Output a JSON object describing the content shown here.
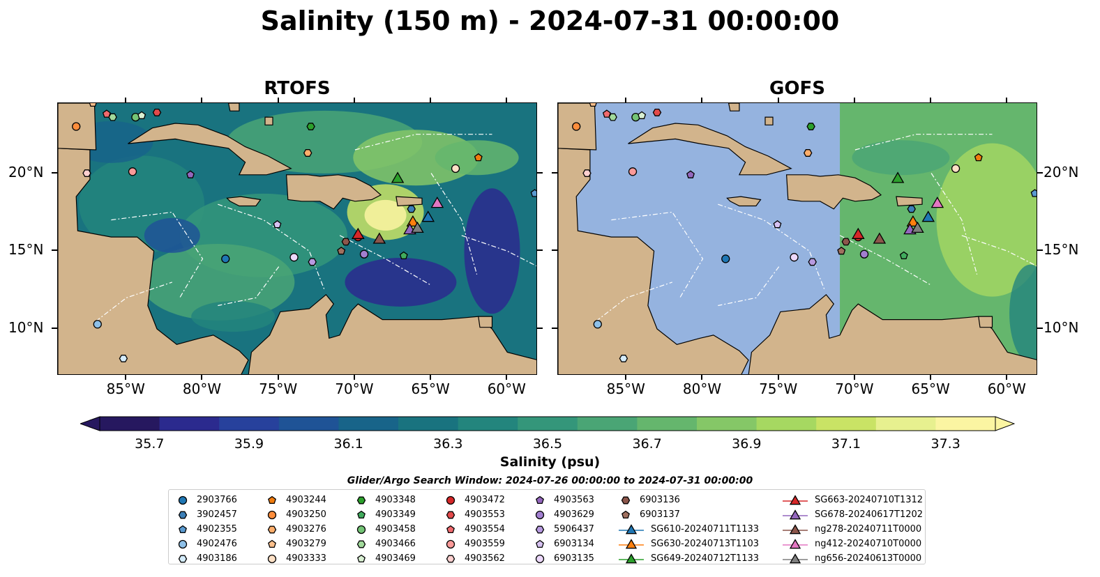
{
  "title": "Salinity (150 m) - 2024-07-31 00:00:00",
  "panels": [
    {
      "name": "RTOFS"
    },
    {
      "name": "GOFS"
    }
  ],
  "lon_ticks": [
    "85°W",
    "80°W",
    "75°W",
    "70°W",
    "65°W",
    "60°W"
  ],
  "lat_ticks": [
    "20°N",
    "15°N",
    "10°N"
  ],
  "colorbar": {
    "label": "Salinity (psu)",
    "ticks": [
      "35.7",
      "35.9",
      "36.1",
      "36.3",
      "36.5",
      "36.7",
      "36.9",
      "37.1",
      "37.3"
    ],
    "min": 35.7,
    "max": 37.3,
    "extend": "both",
    "colors": [
      "#26185f",
      "#2b2a8e",
      "#27419c",
      "#1f5396",
      "#186489",
      "#19737f",
      "#23857d",
      "#34967a",
      "#4aa575",
      "#65b66d",
      "#85c767",
      "#a6d861",
      "#c9e365",
      "#e7f08f",
      "#fbf5a2"
    ]
  },
  "search_window": "Glider/Argo Search Window: 2024-07-26 00:00:00 to 2024-07-31 00:00:00",
  "legend": [
    {
      "label": "2903766",
      "marker": "circle",
      "color": "#1f77b4"
    },
    {
      "label": "3902457",
      "marker": "hexagon",
      "color": "#3c7fb7"
    },
    {
      "label": "4902355",
      "marker": "pentagon",
      "color": "#5a9ad0"
    },
    {
      "label": "4902476",
      "marker": "circle",
      "color": "#8ec0e8"
    },
    {
      "label": "4903186",
      "marker": "hexagon",
      "color": "#d4ecfb"
    },
    {
      "label": "4903244",
      "marker": "pentagon",
      "color": "#f07c0e"
    },
    {
      "label": "4903250",
      "marker": "circle",
      "color": "#fd8d3c"
    },
    {
      "label": "4903276",
      "marker": "hexagon",
      "color": "#fdae6b"
    },
    {
      "label": "4903279",
      "marker": "pentagon",
      "color": "#fdc08c"
    },
    {
      "label": "4903333",
      "marker": "circle",
      "color": "#fee1c6"
    },
    {
      "label": "4903348",
      "marker": "hexagon",
      "color": "#2ca02c"
    },
    {
      "label": "4903349",
      "marker": "pentagon",
      "color": "#41ab5d"
    },
    {
      "label": "4903458",
      "marker": "circle",
      "color": "#74c476"
    },
    {
      "label": "4903466",
      "marker": "hexagon",
      "color": "#a1d99b"
    },
    {
      "label": "4903469",
      "marker": "pentagon",
      "color": "#d9f0d3"
    },
    {
      "label": "4903472",
      "marker": "circle",
      "color": "#d62728"
    },
    {
      "label": "4903553",
      "marker": "hexagon",
      "color": "#e34a4b"
    },
    {
      "label": "4903554",
      "marker": "pentagon",
      "color": "#f06a6e"
    },
    {
      "label": "4903559",
      "marker": "circle",
      "color": "#fb9a99"
    },
    {
      "label": "4903562",
      "marker": "hexagon",
      "color": "#fdd0cf"
    },
    {
      "label": "4903563",
      "marker": "pentagon",
      "color": "#9467bd"
    },
    {
      "label": "4903629",
      "marker": "circle",
      "color": "#a27fd0"
    },
    {
      "label": "5906437",
      "marker": "hexagon",
      "color": "#b79ae0"
    },
    {
      "label": "6903134",
      "marker": "pentagon",
      "color": "#d7c2f2"
    },
    {
      "label": "6903135",
      "marker": "circle",
      "color": "#ecd8fb"
    },
    {
      "label": "6903136",
      "marker": "hexagon",
      "color": "#8c564b"
    },
    {
      "label": "6903137",
      "marker": "pentagon",
      "color": "#a0705f"
    },
    {
      "label": "SG610-20240711T1133",
      "marker": "triangle",
      "color": "#1f77b4"
    },
    {
      "label": "SG630-20240713T1103",
      "marker": "triangle",
      "color": "#ff7f0e"
    },
    {
      "label": "SG649-20240712T1133",
      "marker": "triangle",
      "color": "#2ca02c"
    },
    {
      "label": "SG663-20240710T1312",
      "marker": "triangle",
      "color": "#d62728"
    },
    {
      "label": "SG678-20240617T1202",
      "marker": "triangle",
      "color": "#9467bd"
    },
    {
      "label": "ng278-20240711T0000",
      "marker": "triangle",
      "color": "#8c564b"
    },
    {
      "label": "ng412-20240710T0000",
      "marker": "triangle",
      "color": "#e377c2"
    },
    {
      "label": "ng656-20240613T0000",
      "marker": "triangle",
      "color": "#7f7f7f"
    }
  ],
  "chart_data": {
    "type": "heatmap",
    "title": "Salinity (150 m) - 2024-07-31 00:00:00",
    "panels": [
      "RTOFS",
      "GOFS"
    ],
    "variable": "Salinity (psu)",
    "depth": "150 m",
    "time": "2024-07-31 00:00:00",
    "x_range": [
      -89.5,
      -58
    ],
    "y_range": [
      7,
      24.5
    ],
    "xticks": [
      -85,
      -80,
      -75,
      -70,
      -65,
      -60
    ],
    "yticks": [
      20,
      15,
      10
    ],
    "color_range": [
      35.7,
      37.3
    ],
    "gofs_coverage_lon_min": -71,
    "observations": [
      {
        "id": "2903766",
        "lon": -78.5,
        "lat": 14.5
      },
      {
        "id": "3902457",
        "lon": -66.3,
        "lat": 17.7
      },
      {
        "id": "4902355",
        "lon": -58.2,
        "lat": 18.7
      },
      {
        "id": "4902476",
        "lon": -86.9,
        "lat": 10.3
      },
      {
        "id": "4903186",
        "lon": -85.2,
        "lat": 8.1
      },
      {
        "id": "4903244",
        "lon": -61.9,
        "lat": 21.0
      },
      {
        "id": "4903250",
        "lon": -88.3,
        "lat": 23.0
      },
      {
        "id": "4903276",
        "lon": -73.1,
        "lat": 21.3
      },
      {
        "id": "4903279",
        "lon": -87.2,
        "lat": 24.5
      },
      {
        "id": "4903333",
        "lon": -63.4,
        "lat": 20.3
      },
      {
        "id": "4903348",
        "lon": -72.9,
        "lat": 23.0
      },
      {
        "id": "4903349",
        "lon": -66.8,
        "lat": 14.7
      },
      {
        "id": "4903458",
        "lon": -84.4,
        "lat": 23.6
      },
      {
        "id": "4903466",
        "lon": -85.9,
        "lat": 23.6
      },
      {
        "id": "4903469",
        "lon": -84.0,
        "lat": 23.7
      },
      {
        "id": "4903472",
        "lon": -69.8,
        "lat": 15.9
      },
      {
        "id": "4903553",
        "lon": -83.0,
        "lat": 23.9
      },
      {
        "id": "4903554",
        "lon": -86.3,
        "lat": 23.8
      },
      {
        "id": "4903559",
        "lon": -84.6,
        "lat": 20.1
      },
      {
        "id": "4903562",
        "lon": -87.6,
        "lat": 20.0
      },
      {
        "id": "4903563",
        "lon": -80.8,
        "lat": 19.9
      },
      {
        "id": "4903629",
        "lon": -69.4,
        "lat": 14.8
      },
      {
        "id": "5906437",
        "lon": -72.8,
        "lat": 14.3
      },
      {
        "id": "6903134",
        "lon": -75.1,
        "lat": 16.7
      },
      {
        "id": "6903135",
        "lon": -74.0,
        "lat": 14.6
      },
      {
        "id": "6903136",
        "lon": -70.6,
        "lat": 15.6
      },
      {
        "id": "6903137",
        "lon": -70.9,
        "lat": 15.0
      },
      {
        "id": "SG610-20240711T1133",
        "lon": -65.2,
        "lat": 17.2
      },
      {
        "id": "SG630-20240713T1103",
        "lon": -66.2,
        "lat": 16.9
      },
      {
        "id": "SG649-20240712T1133",
        "lon": -67.2,
        "lat": 19.7
      },
      {
        "id": "SG663-20240710T1312",
        "lon": -69.8,
        "lat": 16.1
      },
      {
        "id": "SG678-20240617T1202",
        "lon": -66.4,
        "lat": 16.4
      },
      {
        "id": "ng278-20240711T0000",
        "lon": -68.4,
        "lat": 15.8
      },
      {
        "id": "ng412-20240710T0000",
        "lon": -64.6,
        "lat": 18.1
      },
      {
        "id": "ng656-20240613T0000",
        "lon": -65.9,
        "lat": 16.5
      }
    ]
  }
}
